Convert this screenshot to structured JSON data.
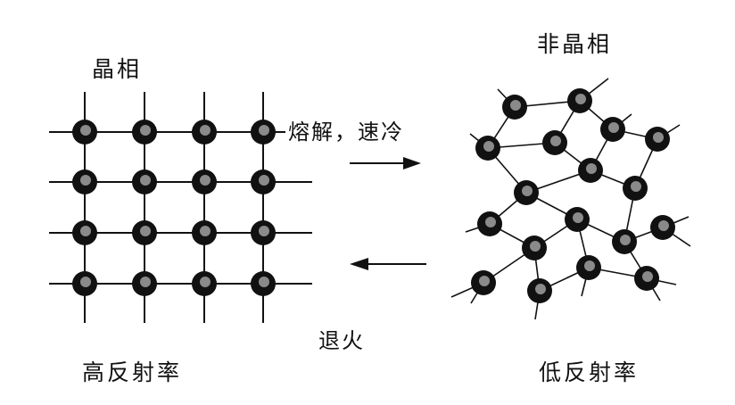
{
  "crystalline": {
    "title": "晶相",
    "caption": "高反射率",
    "lattice": {
      "rows": 4,
      "cols": 4
    }
  },
  "amorphous": {
    "title": "非晶相",
    "caption": "低反射率"
  },
  "process": {
    "forward_label": "熔解，速冷",
    "reverse_label": "退火"
  },
  "colors": {
    "line": "#111111",
    "atom_outer": "#111111",
    "atom_inner": "#8a8a8a",
    "background": "#ffffff"
  }
}
